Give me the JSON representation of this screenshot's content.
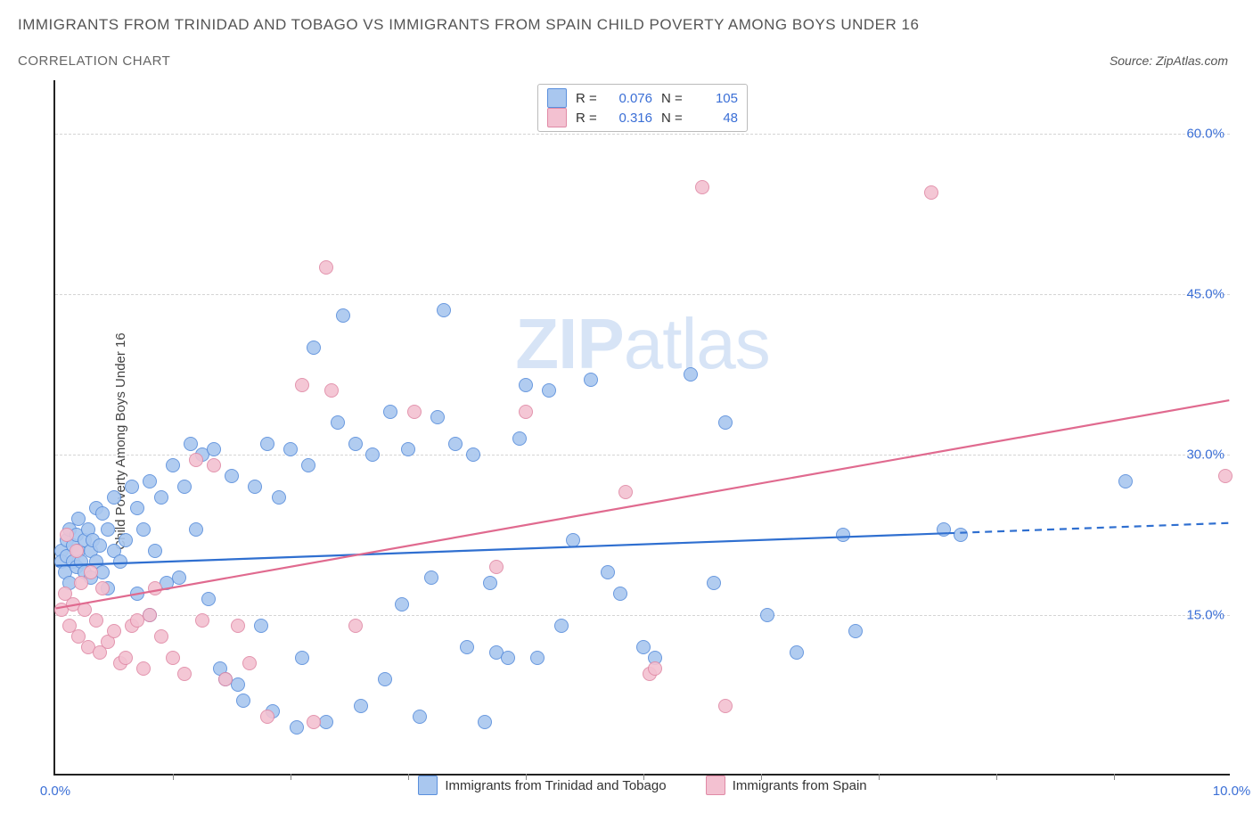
{
  "title": "IMMIGRANTS FROM TRINIDAD AND TOBAGO VS IMMIGRANTS FROM SPAIN CHILD POVERTY AMONG BOYS UNDER 16",
  "subtitle": "CORRELATION CHART",
  "source": "Source: ZipAtlas.com",
  "ylabel": "Child Poverty Among Boys Under 16",
  "watermark_bold": "ZIP",
  "watermark_rest": "atlas",
  "chart": {
    "type": "scatter",
    "xlim": [
      0.0,
      10.0
    ],
    "ylim": [
      0.0,
      65.0
    ],
    "x_ticks": [
      {
        "v": 0.0,
        "label": "0.0%"
      },
      {
        "v": 10.0,
        "label": "10.0%"
      }
    ],
    "x_minor_ticks": [
      1.0,
      2.0,
      3.0,
      4.0,
      5.0,
      6.0,
      7.0,
      8.0,
      9.0
    ],
    "y_ticks": [
      {
        "v": 15.0,
        "label": "15.0%"
      },
      {
        "v": 30.0,
        "label": "30.0%"
      },
      {
        "v": 45.0,
        "label": "45.0%"
      },
      {
        "v": 60.0,
        "label": "60.0%"
      }
    ],
    "background_color": "#ffffff",
    "grid_color": "#d5d5d5",
    "axis_color": "#222222",
    "tick_label_color": "#3b6fd6",
    "point_radius": 8,
    "point_border_width": 1,
    "point_fill_opacity": 0.35,
    "series": [
      {
        "id": "trinidad",
        "label": "Immigrants from Trinidad and Tobago",
        "color_border": "#5a8fdc",
        "color_fill": "#a9c7ef",
        "R": "0.076",
        "N": "105",
        "trend": {
          "x1": 0.0,
          "y1": 19.5,
          "x2": 10.0,
          "y2": 23.5,
          "dash_from_x": 7.6,
          "width": 2.2
        },
        "points": [
          [
            0.05,
            21.0
          ],
          [
            0.05,
            20.0
          ],
          [
            0.08,
            19.0
          ],
          [
            0.1,
            20.5
          ],
          [
            0.1,
            22.0
          ],
          [
            0.12,
            18.0
          ],
          [
            0.12,
            23.0
          ],
          [
            0.15,
            21.5
          ],
          [
            0.15,
            20.0
          ],
          [
            0.18,
            22.5
          ],
          [
            0.18,
            19.5
          ],
          [
            0.2,
            21.0
          ],
          [
            0.2,
            24.0
          ],
          [
            0.22,
            20.0
          ],
          [
            0.25,
            22.0
          ],
          [
            0.25,
            19.0
          ],
          [
            0.28,
            23.0
          ],
          [
            0.3,
            21.0
          ],
          [
            0.3,
            18.5
          ],
          [
            0.32,
            22.0
          ],
          [
            0.35,
            25.0
          ],
          [
            0.35,
            20.0
          ],
          [
            0.38,
            21.5
          ],
          [
            0.4,
            19.0
          ],
          [
            0.4,
            24.5
          ],
          [
            0.45,
            23.0
          ],
          [
            0.45,
            17.5
          ],
          [
            0.5,
            26.0
          ],
          [
            0.5,
            21.0
          ],
          [
            0.55,
            20.0
          ],
          [
            0.6,
            22.0
          ],
          [
            0.65,
            27.0
          ],
          [
            0.7,
            17.0
          ],
          [
            0.7,
            25.0
          ],
          [
            0.75,
            23.0
          ],
          [
            0.8,
            15.0
          ],
          [
            0.8,
            27.5
          ],
          [
            0.85,
            21.0
          ],
          [
            0.9,
            26.0
          ],
          [
            0.95,
            18.0
          ],
          [
            1.0,
            29.0
          ],
          [
            1.05,
            18.5
          ],
          [
            1.1,
            27.0
          ],
          [
            1.15,
            31.0
          ],
          [
            1.2,
            23.0
          ],
          [
            1.25,
            30.0
          ],
          [
            1.3,
            16.5
          ],
          [
            1.35,
            30.5
          ],
          [
            1.4,
            10.0
          ],
          [
            1.45,
            9.0
          ],
          [
            1.5,
            28.0
          ],
          [
            1.55,
            8.5
          ],
          [
            1.6,
            7.0
          ],
          [
            1.7,
            27.0
          ],
          [
            1.75,
            14.0
          ],
          [
            1.8,
            31.0
          ],
          [
            1.85,
            6.0
          ],
          [
            1.9,
            26.0
          ],
          [
            2.0,
            30.5
          ],
          [
            2.05,
            4.5
          ],
          [
            2.1,
            11.0
          ],
          [
            2.15,
            29.0
          ],
          [
            2.2,
            40.0
          ],
          [
            2.3,
            5.0
          ],
          [
            2.4,
            33.0
          ],
          [
            2.45,
            43.0
          ],
          [
            2.55,
            31.0
          ],
          [
            2.6,
            6.5
          ],
          [
            2.7,
            30.0
          ],
          [
            2.8,
            9.0
          ],
          [
            2.85,
            34.0
          ],
          [
            2.95,
            16.0
          ],
          [
            3.0,
            30.5
          ],
          [
            3.1,
            5.5
          ],
          [
            3.2,
            18.5
          ],
          [
            3.25,
            33.5
          ],
          [
            3.3,
            43.5
          ],
          [
            3.4,
            31.0
          ],
          [
            3.5,
            12.0
          ],
          [
            3.55,
            30.0
          ],
          [
            3.65,
            5.0
          ],
          [
            3.7,
            18.0
          ],
          [
            3.75,
            11.5
          ],
          [
            3.85,
            11.0
          ],
          [
            3.95,
            31.5
          ],
          [
            4.0,
            36.5
          ],
          [
            4.1,
            11.0
          ],
          [
            4.2,
            36.0
          ],
          [
            4.3,
            14.0
          ],
          [
            4.4,
            22.0
          ],
          [
            4.55,
            37.0
          ],
          [
            4.7,
            19.0
          ],
          [
            4.8,
            17.0
          ],
          [
            5.0,
            12.0
          ],
          [
            5.1,
            11.0
          ],
          [
            5.4,
            37.5
          ],
          [
            5.6,
            18.0
          ],
          [
            5.7,
            33.0
          ],
          [
            6.05,
            15.0
          ],
          [
            6.3,
            11.5
          ],
          [
            6.7,
            22.5
          ],
          [
            6.8,
            13.5
          ],
          [
            7.55,
            23.0
          ],
          [
            7.7,
            22.5
          ],
          [
            9.1,
            27.5
          ]
        ]
      },
      {
        "id": "spain",
        "label": "Immigrants from Spain",
        "color_border": "#e08aa6",
        "color_fill": "#f3c1d1",
        "R": "0.316",
        "N": "48",
        "trend": {
          "x1": 0.0,
          "y1": 15.5,
          "x2": 10.0,
          "y2": 35.0,
          "dash_from_x": null,
          "width": 2.2
        },
        "points": [
          [
            0.05,
            15.5
          ],
          [
            0.08,
            17.0
          ],
          [
            0.1,
            22.5
          ],
          [
            0.12,
            14.0
          ],
          [
            0.15,
            16.0
          ],
          [
            0.18,
            21.0
          ],
          [
            0.2,
            13.0
          ],
          [
            0.22,
            18.0
          ],
          [
            0.25,
            15.5
          ],
          [
            0.28,
            12.0
          ],
          [
            0.3,
            19.0
          ],
          [
            0.35,
            14.5
          ],
          [
            0.38,
            11.5
          ],
          [
            0.4,
            17.5
          ],
          [
            0.45,
            12.5
          ],
          [
            0.5,
            13.5
          ],
          [
            0.55,
            10.5
          ],
          [
            0.6,
            11.0
          ],
          [
            0.65,
            14.0
          ],
          [
            0.7,
            14.5
          ],
          [
            0.75,
            10.0
          ],
          [
            0.8,
            15.0
          ],
          [
            0.85,
            17.5
          ],
          [
            0.9,
            13.0
          ],
          [
            1.0,
            11.0
          ],
          [
            1.1,
            9.5
          ],
          [
            1.2,
            29.5
          ],
          [
            1.25,
            14.5
          ],
          [
            1.35,
            29.0
          ],
          [
            1.45,
            9.0
          ],
          [
            1.55,
            14.0
          ],
          [
            1.65,
            10.5
          ],
          [
            1.8,
            5.5
          ],
          [
            2.1,
            36.5
          ],
          [
            2.2,
            5.0
          ],
          [
            2.3,
            47.5
          ],
          [
            2.35,
            36.0
          ],
          [
            2.55,
            14.0
          ],
          [
            3.05,
            34.0
          ],
          [
            3.75,
            19.5
          ],
          [
            4.0,
            34.0
          ],
          [
            4.85,
            26.5
          ],
          [
            5.05,
            9.5
          ],
          [
            5.1,
            10.0
          ],
          [
            5.5,
            55.0
          ],
          [
            5.7,
            6.5
          ],
          [
            7.45,
            54.5
          ],
          [
            9.95,
            28.0
          ]
        ]
      }
    ]
  },
  "legend_bottom": [
    {
      "series": 0
    },
    {
      "series": 1
    }
  ]
}
